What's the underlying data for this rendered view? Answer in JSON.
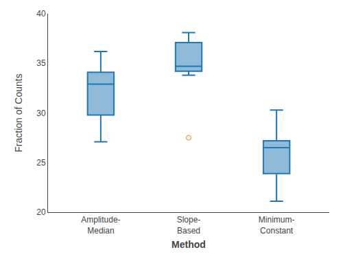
{
  "chart_data": {
    "type": "box",
    "categories": [
      "Amplitude-\nMedian",
      "Slope-\nBased",
      "Minimum-\nConstant"
    ],
    "values": [
      {
        "whislo": 27.1,
        "q1": 29.8,
        "med": 32.9,
        "q3": 34.1,
        "whishi": 36.2,
        "fliers": []
      },
      {
        "whislo": 33.8,
        "q1": 34.2,
        "med": 34.7,
        "q3": 37.1,
        "whishi": 38.1,
        "fliers": [
          27.5
        ]
      },
      {
        "whislo": 21.1,
        "q1": 23.9,
        "med": 26.5,
        "q3": 27.2,
        "whishi": 30.3,
        "fliers": []
      }
    ],
    "xlabel": "Method",
    "ylabel": "Fraction of Counts",
    "ylim": [
      20,
      40
    ],
    "yticks": [
      20,
      25,
      30,
      35,
      40
    ],
    "marker": "circle",
    "grid": false
  }
}
